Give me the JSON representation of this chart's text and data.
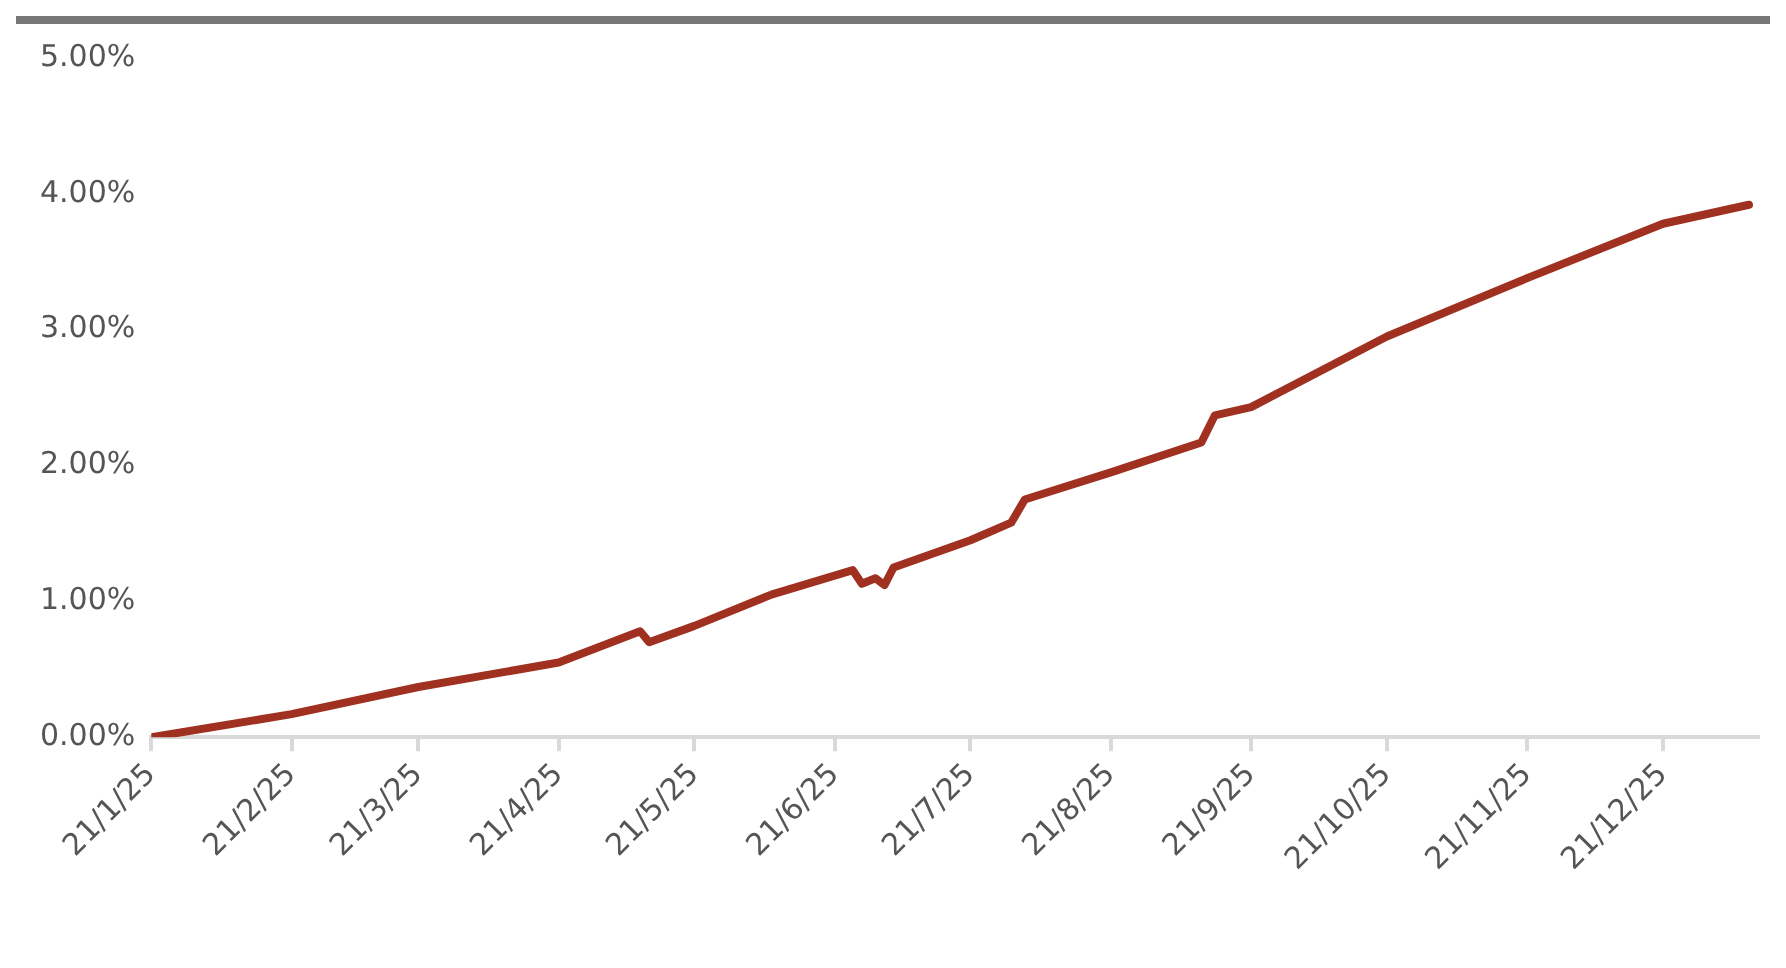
{
  "chart_data": {
    "type": "line",
    "x": [
      "2025-01-21",
      "2025-02-21",
      "2025-03-21",
      "2025-04-21",
      "2025-05-09",
      "2025-05-11",
      "2025-05-21",
      "2025-06-07",
      "2025-06-25",
      "2025-06-27",
      "2025-06-30",
      "2025-07-02",
      "2025-07-04",
      "2025-07-21",
      "2025-07-30",
      "2025-08-02",
      "2025-08-21",
      "2025-09-10",
      "2025-09-13",
      "2025-09-21",
      "2025-10-21",
      "2025-11-21",
      "2025-12-21",
      "2026-01-09"
    ],
    "series": [
      {
        "color": "#a0301f",
        "values": [
          0,
          0.17,
          0.37,
          0.55,
          0.78,
          0.7,
          0.82,
          1.05,
          1.23,
          1.13,
          1.17,
          1.12,
          1.25,
          1.45,
          1.58,
          1.75,
          1.95,
          2.17,
          2.37,
          2.43,
          2.95,
          3.38,
          3.78,
          3.92
        ]
      }
    ],
    "xlim": [
      "2025-01-21",
      "2026-01-11"
    ],
    "xticks": [
      {
        "value": "2025-01-21",
        "label": "21/1/25"
      },
      {
        "value": "2025-02-21",
        "label": "21/2/25"
      },
      {
        "value": "2025-03-21",
        "label": "21/3/25"
      },
      {
        "value": "2025-04-21",
        "label": "21/4/25"
      },
      {
        "value": "2025-05-21",
        "label": "21/5/25"
      },
      {
        "value": "2025-06-21",
        "label": "21/6/25"
      },
      {
        "value": "2025-07-21",
        "label": "21/7/25"
      },
      {
        "value": "2025-08-21",
        "label": "21/8/25"
      },
      {
        "value": "2025-09-21",
        "label": "21/9/25"
      },
      {
        "value": "2025-10-21",
        "label": "21/10/25"
      },
      {
        "value": "2025-11-21",
        "label": "21/11/25"
      },
      {
        "value": "2025-12-21",
        "label": "21/12/25"
      }
    ],
    "ylim": [
      0,
      5
    ],
    "yticks": [
      {
        "value": 0,
        "label": "0.00%"
      },
      {
        "value": 1,
        "label": "1.00%"
      },
      {
        "value": 2,
        "label": "2.00%"
      },
      {
        "value": 3,
        "label": "3.00%"
      },
      {
        "value": 4,
        "label": "4.00%"
      },
      {
        "value": 5,
        "label": "5.00%"
      }
    ],
    "grid": false,
    "legend": false,
    "marker": "none",
    "line_style": "solid"
  }
}
